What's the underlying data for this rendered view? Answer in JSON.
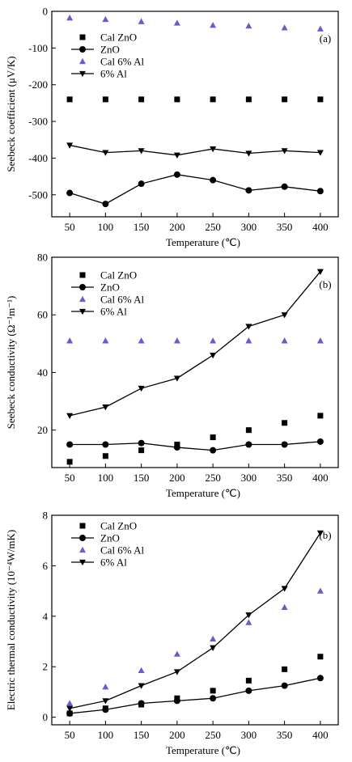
{
  "colors": {
    "axis": "#000000",
    "triangle": "#6a5acd",
    "marker": "#000000"
  },
  "chart_data": [
    {
      "type": "line",
      "panel_label": "(a)",
      "xlabel": "Temperature (℃)",
      "ylabel": "Seebeck coefficient (μV/K)",
      "x": [
        50,
        100,
        150,
        200,
        250,
        300,
        350,
        400
      ],
      "xlim": [
        25,
        425
      ],
      "ylim": [
        -560,
        0
      ],
      "xticks": [
        50,
        100,
        150,
        200,
        250,
        300,
        350,
        400
      ],
      "yticks": [
        0,
        -100,
        -200,
        -300,
        -400,
        -500
      ],
      "legend_position": "top-left",
      "series": [
        {
          "name": "Cal ZnO",
          "marker": "square",
          "line": false,
          "values": [
            -240,
            -240,
            -240,
            -240,
            -240,
            -240,
            -240,
            -240
          ]
        },
        {
          "name": "ZnO",
          "marker": "circle",
          "line": true,
          "values": [
            -495,
            -525,
            -470,
            -445,
            -460,
            -488,
            -478,
            -490
          ]
        },
        {
          "name": "Cal 6% Al",
          "marker": "triangle-up",
          "line": false,
          "values": [
            -18,
            -22,
            -28,
            -32,
            -38,
            -40,
            -45,
            -48
          ]
        },
        {
          "name": "6% Al",
          "marker": "triangle-down",
          "line": true,
          "values": [
            -365,
            -385,
            -380,
            -392,
            -375,
            -387,
            -380,
            -385
          ]
        }
      ]
    },
    {
      "type": "line",
      "panel_label": "(b)",
      "xlabel": "Temperature (℃)",
      "ylabel": "Seebeck conductivity (Ω⁻¹m⁻¹)",
      "x": [
        50,
        100,
        150,
        200,
        250,
        300,
        350,
        400
      ],
      "xlim": [
        25,
        425
      ],
      "ylim": [
        7,
        80
      ],
      "xticks": [
        50,
        100,
        150,
        200,
        250,
        300,
        350,
        400
      ],
      "yticks": [
        20,
        40,
        60,
        80
      ],
      "legend_position": "top-left",
      "series": [
        {
          "name": "Cal ZnO",
          "marker": "square",
          "line": false,
          "values": [
            9,
            11,
            13,
            15,
            17.5,
            20,
            22.5,
            25
          ]
        },
        {
          "name": "ZnO",
          "marker": "circle",
          "line": true,
          "values": [
            15,
            15,
            15.5,
            14,
            13,
            15,
            15,
            16
          ]
        },
        {
          "name": "Cal 6% Al",
          "marker": "triangle-up",
          "line": false,
          "values": [
            51,
            51,
            51,
            51,
            51,
            51,
            51,
            51
          ]
        },
        {
          "name": "6% Al",
          "marker": "triangle-down",
          "line": true,
          "values": [
            25,
            28,
            34.5,
            38,
            46,
            56,
            60,
            75
          ]
        }
      ]
    },
    {
      "type": "line",
      "panel_label": "(b)",
      "xlabel": "Temperature (℃)",
      "ylabel": "Electric thermal conductivity (10⁻⁴W/mK)",
      "x": [
        50,
        100,
        150,
        200,
        250,
        300,
        350,
        400
      ],
      "xlim": [
        25,
        425
      ],
      "ylim": [
        -0.3,
        8
      ],
      "xticks": [
        50,
        100,
        150,
        200,
        250,
        300,
        350,
        400
      ],
      "yticks": [
        0,
        2,
        4,
        6,
        8
      ],
      "legend_position": "top-left",
      "series": [
        {
          "name": "Cal ZnO",
          "marker": "square",
          "line": false,
          "values": [
            0.15,
            0.35,
            0.5,
            0.75,
            1.05,
            1.45,
            1.9,
            2.4
          ]
        },
        {
          "name": "ZnO",
          "marker": "circle",
          "line": true,
          "values": [
            0.15,
            0.3,
            0.55,
            0.65,
            0.75,
            1.05,
            1.25,
            1.55
          ]
        },
        {
          "name": "Cal 6% Al",
          "marker": "triangle-up",
          "line": false,
          "values": [
            0.55,
            1.2,
            1.85,
            2.5,
            3.1,
            3.75,
            4.35,
            5.0
          ]
        },
        {
          "name": "6% Al",
          "marker": "triangle-down",
          "line": true,
          "values": [
            0.35,
            0.65,
            1.25,
            1.8,
            2.75,
            4.05,
            5.1,
            7.3
          ]
        }
      ]
    }
  ]
}
